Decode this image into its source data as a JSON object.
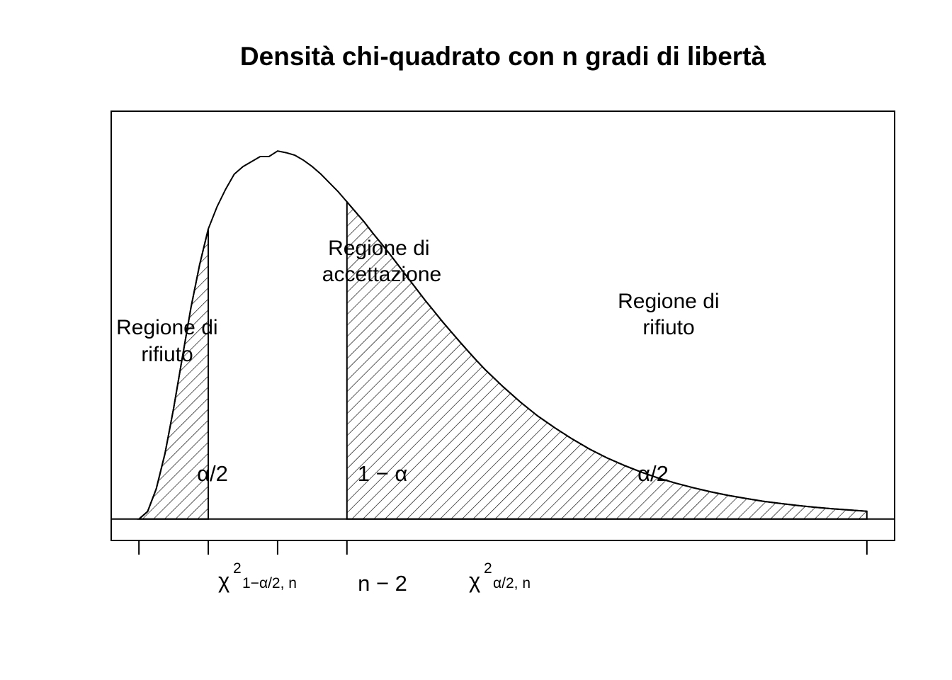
{
  "chart_data": {
    "type": "area",
    "title": "Densità chi-quadrato con n gradi di libertà",
    "xlabel": "",
    "ylabel": "",
    "distribution": "chi-square",
    "mode": 5,
    "curve": {
      "x": [
        1,
        1.25,
        1.5,
        1.75,
        2,
        2.25,
        2.5,
        2.75,
        3,
        3.25,
        3.5,
        3.75,
        4,
        4.25,
        4.5,
        4.75,
        5,
        5.25,
        5.5,
        5.75,
        6,
        6.25,
        6.5,
        6.75,
        7,
        7.25,
        7.5,
        7.75,
        8,
        8.25,
        8.5,
        8.75,
        9,
        9.25,
        9.5,
        9.75,
        10,
        10.25,
        10.5,
        10.75,
        11,
        11.5,
        12,
        12.5,
        13,
        13.5,
        14,
        14.5,
        15,
        15.5,
        16,
        16.5,
        17,
        17.5,
        18,
        18.5,
        19,
        19.5,
        20,
        20.5,
        21,
        21.5,
        22
      ],
      "y": [
        0.0,
        0.003,
        0.012,
        0.026,
        0.044,
        0.064,
        0.084,
        0.101,
        0.1152,
        0.124,
        0.131,
        0.137,
        0.14,
        0.142,
        0.144,
        0.144,
        0.1462,
        0.1455,
        0.1445,
        0.1425,
        0.14,
        0.137,
        0.1335,
        0.13,
        0.126,
        0.122,
        0.118,
        0.1135,
        0.1093,
        0.105,
        0.1005,
        0.096,
        0.0915,
        0.087,
        0.0828,
        0.0785,
        0.0745,
        0.0705,
        0.0666,
        0.0628,
        0.0592,
        0.0526,
        0.0465,
        0.041,
        0.0362,
        0.0318,
        0.0278,
        0.0243,
        0.0213,
        0.0186,
        0.0162,
        0.0142,
        0.0124,
        0.0108,
        0.0094,
        0.0082,
        0.0071,
        0.0062,
        0.0054,
        0.0047,
        0.0041,
        0.0036,
        0.0031
      ]
    },
    "xlim": [
      0.2,
      22.8
    ],
    "ylim": [
      -0.0085,
      0.162
    ],
    "ticks": [
      1,
      3,
      5,
      7,
      22
    ],
    "critical_left": 3,
    "critical_right": 7,
    "shaded": [
      [
        1,
        3
      ],
      [
        7,
        22
      ]
    ],
    "tick_labels": [
      {
        "x": 3,
        "base": "χ",
        "sup": "2",
        "sub": "1−α/2, n"
      },
      {
        "x": 5,
        "text": "n − 2"
      },
      {
        "x": 7,
        "base": "χ",
        "sup": "2",
        "sub": "α/2, n"
      }
    ],
    "annotations": {
      "left_region": [
        "Regione di",
        "rifiuto"
      ],
      "center_region": [
        "Regione di",
        "accettazione"
      ],
      "right_region": [
        "Regione di",
        "rifiuto"
      ],
      "left_area": "α/2",
      "center_area": "1 − α",
      "right_area": "α/2"
    },
    "grid": false,
    "legend": "none"
  }
}
